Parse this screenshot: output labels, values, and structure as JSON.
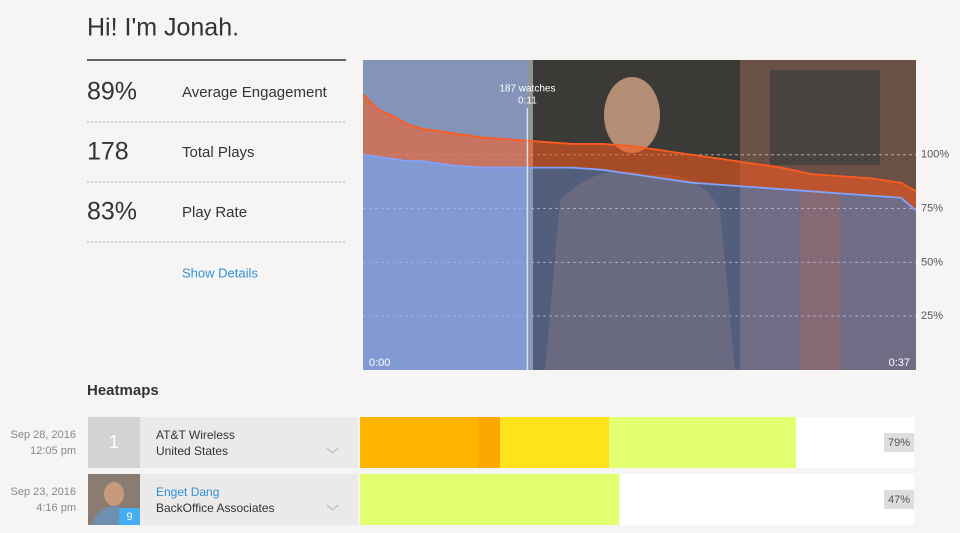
{
  "header": {
    "title": "Hi! I'm Jonah."
  },
  "stats": [
    {
      "value": "89%",
      "label": "Average Engagement"
    },
    {
      "value": "178",
      "label": "Total Plays"
    },
    {
      "value": "83%",
      "label": "Play Rate"
    }
  ],
  "show_details": "Show Details",
  "chart_data": {
    "type": "area",
    "x": [
      0,
      1,
      2,
      3,
      4,
      5,
      6,
      8,
      10,
      12,
      14,
      16,
      18,
      20,
      22,
      24,
      26,
      28,
      30,
      32,
      34,
      36,
      37
    ],
    "series": [
      {
        "color": "#ff5a1e",
        "values": [
          128,
          121,
          118,
          114,
          112,
          111,
          110,
          108,
          107,
          106,
          105,
          105,
          104,
          102,
          100,
          98,
          96,
          94,
          91,
          90,
          89,
          87,
          83
        ]
      },
      {
        "color": "#7fa4ff",
        "values": [
          100,
          99,
          98,
          97,
          97,
          96,
          95,
          94,
          94,
          94,
          94,
          93,
          91,
          89,
          87,
          86,
          85,
          84,
          83,
          82,
          81,
          80,
          74
        ]
      }
    ],
    "xlim": [
      0,
      37
    ],
    "xticks": [
      {
        "value": 0,
        "label": "0:00"
      },
      {
        "value": 37,
        "label": "0:37"
      }
    ],
    "ylim": [
      0,
      144
    ],
    "yticks": [
      {
        "value": 25,
        "label": "25%"
      },
      {
        "value": 50,
        "label": "50%"
      },
      {
        "value": 75,
        "label": "75%"
      },
      {
        "value": 100,
        "label": "100%"
      }
    ],
    "grid": true,
    "annotations": [
      {
        "x": 11,
        "text": "187 watches",
        "label": "0:11"
      }
    ]
  },
  "heatmaps": {
    "title": "Heatmaps",
    "xlim": [
      0,
      100
    ],
    "rows": [
      {
        "date": "Sep 28, 2016",
        "time": "12:05 pm",
        "avatar": "1",
        "name": "AT&T Wireless",
        "detail": "United States",
        "segments": [
          {
            "start": 0,
            "end": 21.3,
            "color": "#ffb400"
          },
          {
            "start": 21.3,
            "end": 25.3,
            "color": "#fca800"
          },
          {
            "start": 25.3,
            "end": 45,
            "color": "#ffe31a"
          },
          {
            "start": 45,
            "end": 78.7,
            "color": "#e1ff6e"
          }
        ],
        "value": 79,
        "value_label": "79%"
      },
      {
        "date": "Sep 23, 2016",
        "time": "4:16 pm",
        "badge": "9",
        "name": "Enget Dang",
        "detail": "BackOffice Associates",
        "segments": [
          {
            "start": 0,
            "end": 46.8,
            "color": "#e1ff6e"
          }
        ],
        "value": 47,
        "value_label": "47%"
      }
    ]
  }
}
